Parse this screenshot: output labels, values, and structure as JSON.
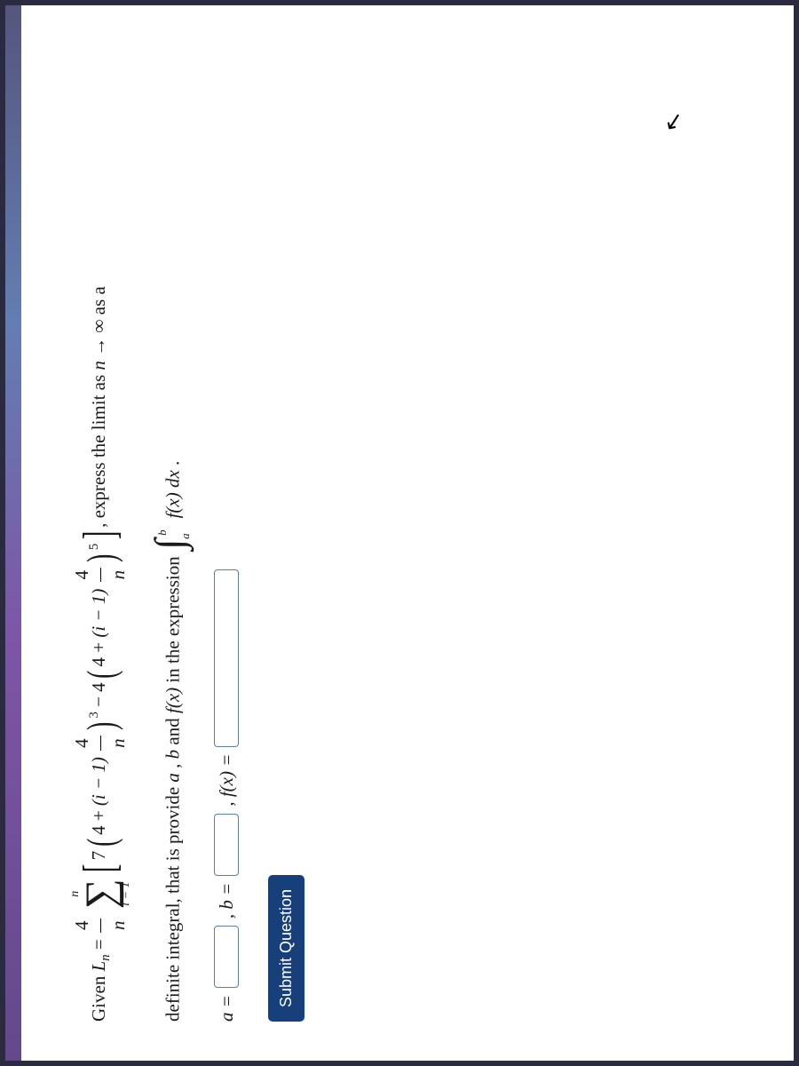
{
  "problem": {
    "given_label": "Given ",
    "Ln": "L",
    "n_sub": "n",
    "equals": " = ",
    "outer_frac_num": "4",
    "outer_frac_den": "n",
    "sum_upper": "n",
    "sum_lower": "i = 1",
    "inner_coef1": "7",
    "base_const": "4",
    "plus": " + ",
    "i_minus_1": "(i − 1)",
    "frac4n_num": "4",
    "frac4n_den": "n",
    "power3": "3",
    "minus": " − ",
    "inner_coef2": "4",
    "power5": "5",
    "tail_text": ", express the limit as ",
    "limit_expr": "n → ∞",
    "as_a": " as a"
  },
  "line2": {
    "text_a": "definite integral, that is provide ",
    "a": "a",
    "comma1": ", ",
    "b": "b",
    "and": " and ",
    "fx": "f(x)",
    "in_expr": " in the expression ",
    "int_upper": "b",
    "int_lower": "a",
    "integrand": "f(x) dx",
    "period": "."
  },
  "inputs": {
    "a_label": "a = ",
    "b_label": ", b = ",
    "fx_label": ", f(x) = "
  },
  "button": {
    "submit": "Submit Question"
  },
  "colors": {
    "frame_border": "#2a2a40",
    "button_bg": "#17407a",
    "input_border": "#5f7d9c",
    "page_bg": "#ffffff"
  }
}
